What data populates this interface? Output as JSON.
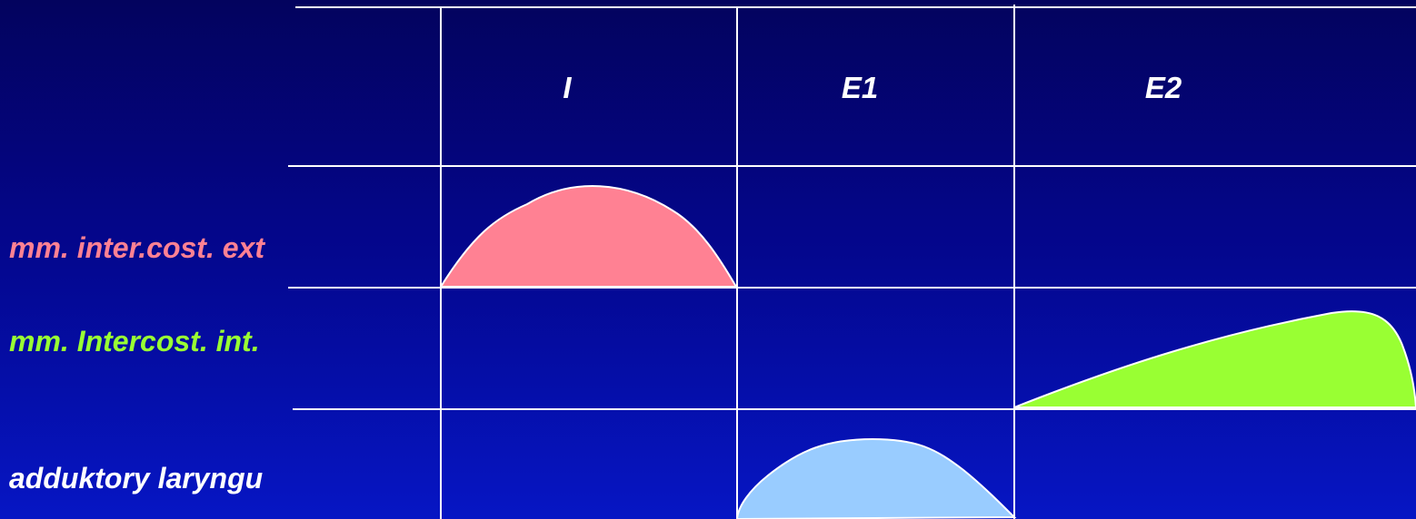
{
  "columns": [
    {
      "id": "I",
      "label": "I"
    },
    {
      "id": "E1",
      "label": "E1"
    },
    {
      "id": "E2",
      "label": "E2"
    }
  ],
  "rows": [
    {
      "id": "ext",
      "label": "mm. inter.cost. ext",
      "color": "#ff8193"
    },
    {
      "id": "int",
      "label": "mm. Intercost. int.",
      "color": "#99ff33"
    },
    {
      "id": "lar",
      "label": "adduktory laryngu",
      "color": "#ffffff"
    }
  ],
  "activity": [
    {
      "muscle": "mm. inter.cost. ext",
      "phase": "I",
      "fill_color": "#ff8193"
    },
    {
      "muscle": "mm. Intercost. int.",
      "phase": "E2",
      "fill_color": "#99ff33"
    },
    {
      "muscle": "adduktory laryngu",
      "phase": "E1",
      "fill_color": "#99ccff"
    }
  ],
  "colors": {
    "background_top": "#03035e",
    "background_bottom": "#0616c4",
    "grid_line": "#ffffff"
  }
}
